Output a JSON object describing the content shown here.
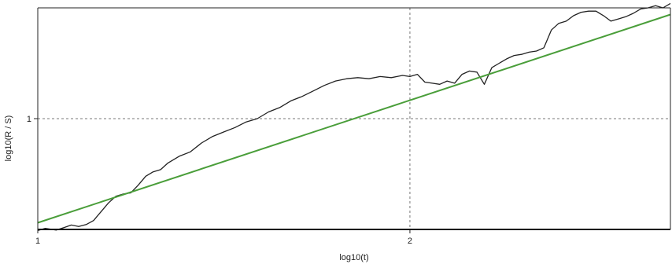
{
  "chart_data": {
    "type": "line",
    "xlabel": "log10(t)",
    "ylabel": "log10(R / S)",
    "x_ticks": [
      {
        "value": 1,
        "label": "1"
      },
      {
        "value": 2,
        "label": "2"
      }
    ],
    "y_ticks": [
      {
        "value": 1,
        "label": "1"
      }
    ],
    "xlim": [
      1.0,
      2.7
    ],
    "ylim": [
      0.5,
      1.5
    ],
    "grid": "dashed at labeled ticks",
    "series": [
      {
        "color": "#222222",
        "x": [
          1.0,
          1.02,
          1.05,
          1.07,
          1.09,
          1.11,
          1.13,
          1.15,
          1.17,
          1.19,
          1.21,
          1.23,
          1.25,
          1.27,
          1.29,
          1.31,
          1.33,
          1.35,
          1.38,
          1.41,
          1.44,
          1.47,
          1.5,
          1.53,
          1.56,
          1.59,
          1.62,
          1.65,
          1.68,
          1.71,
          1.74,
          1.77,
          1.8,
          1.83,
          1.86,
          1.89,
          1.92,
          1.95,
          1.98,
          2.0,
          2.02,
          2.04,
          2.06,
          2.08,
          2.1,
          2.12,
          2.14,
          2.16,
          2.18,
          2.2,
          2.22,
          2.24,
          2.26,
          2.28,
          2.3,
          2.32,
          2.34,
          2.36,
          2.38,
          2.4,
          2.42,
          2.44,
          2.46,
          2.48,
          2.5,
          2.52,
          2.54,
          2.56,
          2.58,
          2.6,
          2.62,
          2.64,
          2.66,
          2.68,
          2.7
        ],
        "y": [
          0.495,
          0.505,
          0.497,
          0.508,
          0.52,
          0.513,
          0.522,
          0.54,
          0.58,
          0.62,
          0.65,
          0.66,
          0.665,
          0.7,
          0.74,
          0.76,
          0.77,
          0.8,
          0.83,
          0.85,
          0.89,
          0.92,
          0.94,
          0.96,
          0.985,
          1.0,
          1.03,
          1.05,
          1.08,
          1.1,
          1.125,
          1.15,
          1.17,
          1.18,
          1.185,
          1.18,
          1.19,
          1.185,
          1.195,
          1.19,
          1.2,
          1.165,
          1.16,
          1.155,
          1.17,
          1.16,
          1.2,
          1.215,
          1.21,
          1.155,
          1.23,
          1.25,
          1.27,
          1.285,
          1.29,
          1.3,
          1.305,
          1.32,
          1.4,
          1.43,
          1.44,
          1.465,
          1.48,
          1.485,
          1.485,
          1.465,
          1.44,
          1.45,
          1.46,
          1.475,
          1.495,
          1.5,
          1.51,
          1.5,
          1.52
        ]
      },
      {
        "color": "#4a9e3a",
        "x": [
          1.0,
          2.7
        ],
        "y": [
          0.53,
          1.47
        ]
      }
    ]
  }
}
